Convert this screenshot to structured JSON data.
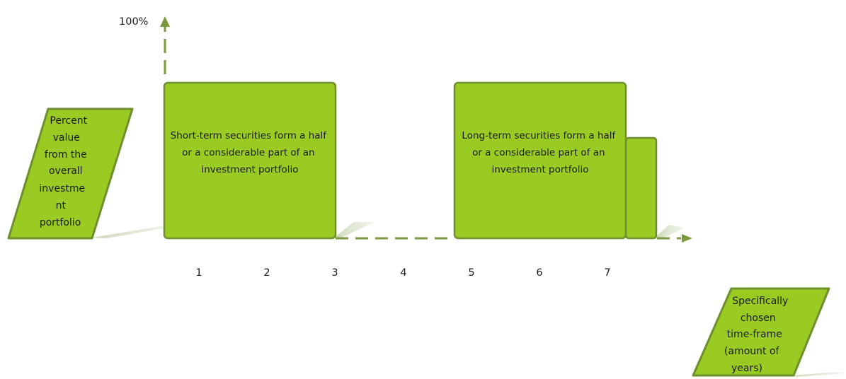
{
  "axis": {
    "y_top_label": "100%",
    "x_ticks": [
      "1",
      "2",
      "3",
      "4",
      "5",
      "6",
      "7"
    ]
  },
  "labels": {
    "y_axis_caption": [
      "Percent",
      "value",
      "from the",
      "overall",
      "investme",
      "nt",
      "portfolio"
    ],
    "x_axis_caption": [
      "Specifically",
      "chosen",
      "time-frame",
      "(amount of",
      "years)"
    ]
  },
  "blocks": {
    "short_term": [
      "Short-term securities form a half",
      "or a considerable part of an",
      "investment portfolio"
    ],
    "long_term": [
      "Long-term securities form a half",
      "or a considerable part of an",
      "investment portfolio"
    ]
  },
  "colors": {
    "fill": "#9acb23",
    "border": "#6f8f2e",
    "arrow": "#7a9a3c",
    "shadow": "#d3dcc3"
  }
}
